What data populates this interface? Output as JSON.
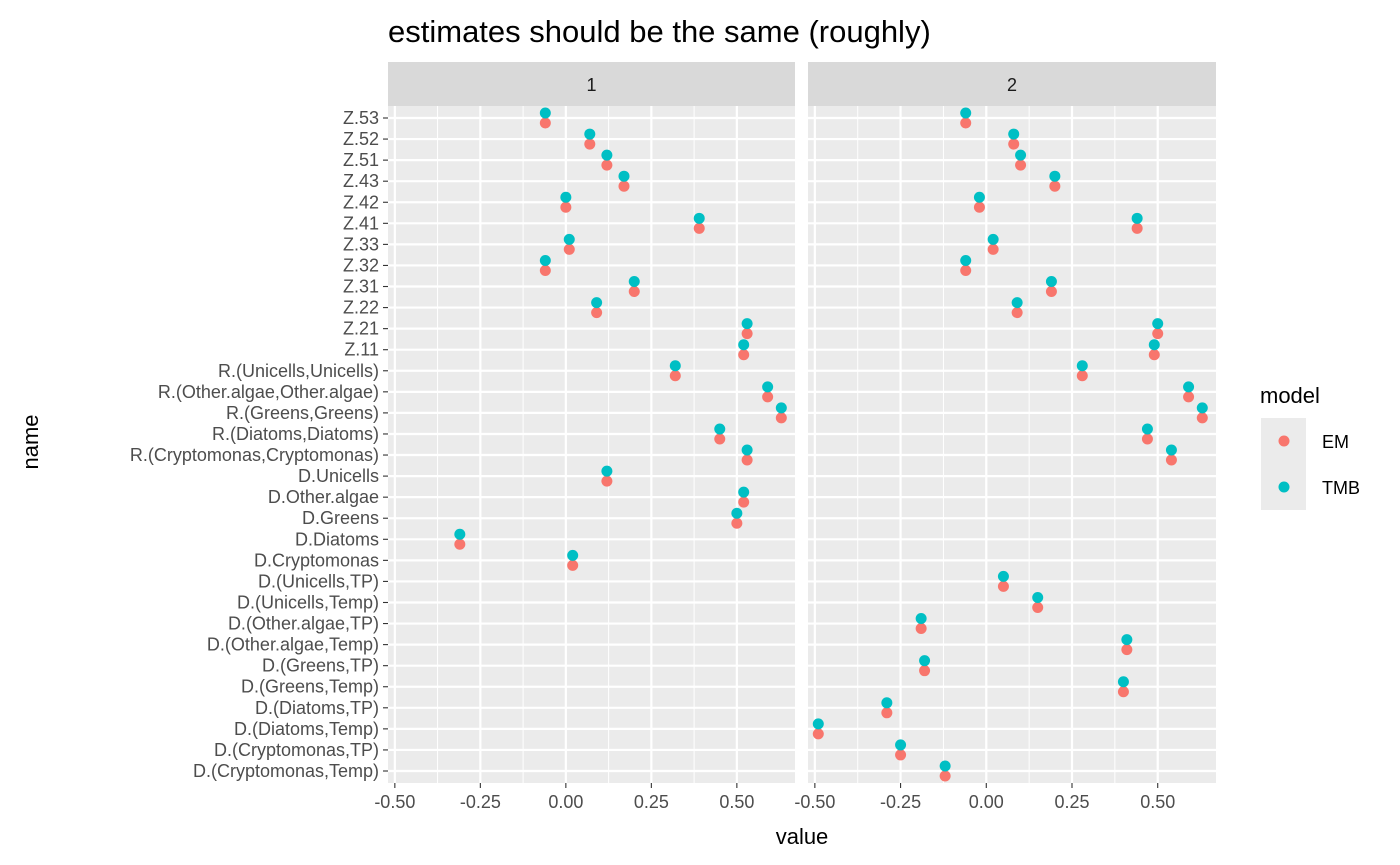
{
  "chart_data": {
    "type": "scatter",
    "title": "estimates should be the same (roughly)",
    "xlabel": "value",
    "ylabel": "name",
    "xlim": [
      -0.52,
      0.67
    ],
    "x_ticks": [
      -0.5,
      -0.25,
      0.0,
      0.25,
      0.5
    ],
    "x_tick_labels": [
      "-0.50",
      "-0.25",
      "0.00",
      "0.25",
      "0.50"
    ],
    "grid": true,
    "legend_position": "right",
    "legend": {
      "title": "model",
      "entries": [
        {
          "name": "EM",
          "color": "#F8766D"
        },
        {
          "name": "TMB",
          "color": "#00BFC4"
        }
      ]
    },
    "categories": [
      "Z.53",
      "Z.52",
      "Z.51",
      "Z.43",
      "Z.42",
      "Z.41",
      "Z.33",
      "Z.32",
      "Z.31",
      "Z.22",
      "Z.21",
      "Z.11",
      "R.(Unicells,Unicells)",
      "R.(Other.algae,Other.algae)",
      "R.(Greens,Greens)",
      "R.(Diatoms,Diatoms)",
      "R.(Cryptomonas,Cryptomonas)",
      "D.Unicells",
      "D.Other.algae",
      "D.Greens",
      "D.Diatoms",
      "D.Cryptomonas",
      "D.(Unicells,TP)",
      "D.(Unicells,Temp)",
      "D.(Other.algae,TP)",
      "D.(Other.algae,Temp)",
      "D.(Greens,TP)",
      "D.(Greens,Temp)",
      "D.(Diatoms,TP)",
      "D.(Diatoms,Temp)",
      "D.(Cryptomonas,TP)",
      "D.(Cryptomonas,Temp)"
    ],
    "panels": [
      {
        "label": "1",
        "series": [
          {
            "name": "EM",
            "values": [
              -0.06,
              0.07,
              0.12,
              0.17,
              0.0,
              0.39,
              0.01,
              -0.06,
              0.2,
              0.09,
              0.53,
              0.52,
              0.32,
              0.59,
              0.63,
              0.45,
              0.53,
              0.12,
              0.52,
              0.5,
              -0.31,
              0.02,
              null,
              null,
              null,
              null,
              null,
              null,
              null,
              null,
              null,
              null
            ]
          },
          {
            "name": "TMB",
            "values": [
              -0.06,
              0.07,
              0.12,
              0.17,
              0.0,
              0.39,
              0.01,
              -0.06,
              0.2,
              0.09,
              0.53,
              0.52,
              0.32,
              0.59,
              0.63,
              0.45,
              0.53,
              0.12,
              0.52,
              0.5,
              -0.31,
              0.02,
              null,
              null,
              null,
              null,
              null,
              null,
              null,
              null,
              null,
              null
            ]
          }
        ]
      },
      {
        "label": "2",
        "series": [
          {
            "name": "EM",
            "values": [
              -0.06,
              0.08,
              0.1,
              0.2,
              -0.02,
              0.44,
              0.02,
              -0.06,
              0.19,
              0.09,
              0.5,
              0.49,
              0.28,
              0.59,
              0.63,
              0.47,
              0.54,
              null,
              null,
              null,
              null,
              null,
              0.05,
              0.15,
              -0.19,
              0.41,
              -0.18,
              0.4,
              -0.29,
              -0.49,
              -0.25,
              -0.12
            ]
          },
          {
            "name": "TMB",
            "values": [
              -0.06,
              0.08,
              0.1,
              0.2,
              -0.02,
              0.44,
              0.02,
              -0.06,
              0.19,
              0.09,
              0.5,
              0.49,
              0.28,
              0.59,
              0.63,
              0.47,
              0.54,
              null,
              null,
              null,
              null,
              null,
              0.05,
              0.15,
              -0.19,
              0.41,
              -0.18,
              0.4,
              -0.29,
              -0.49,
              -0.25,
              -0.12
            ]
          }
        ]
      }
    ]
  }
}
